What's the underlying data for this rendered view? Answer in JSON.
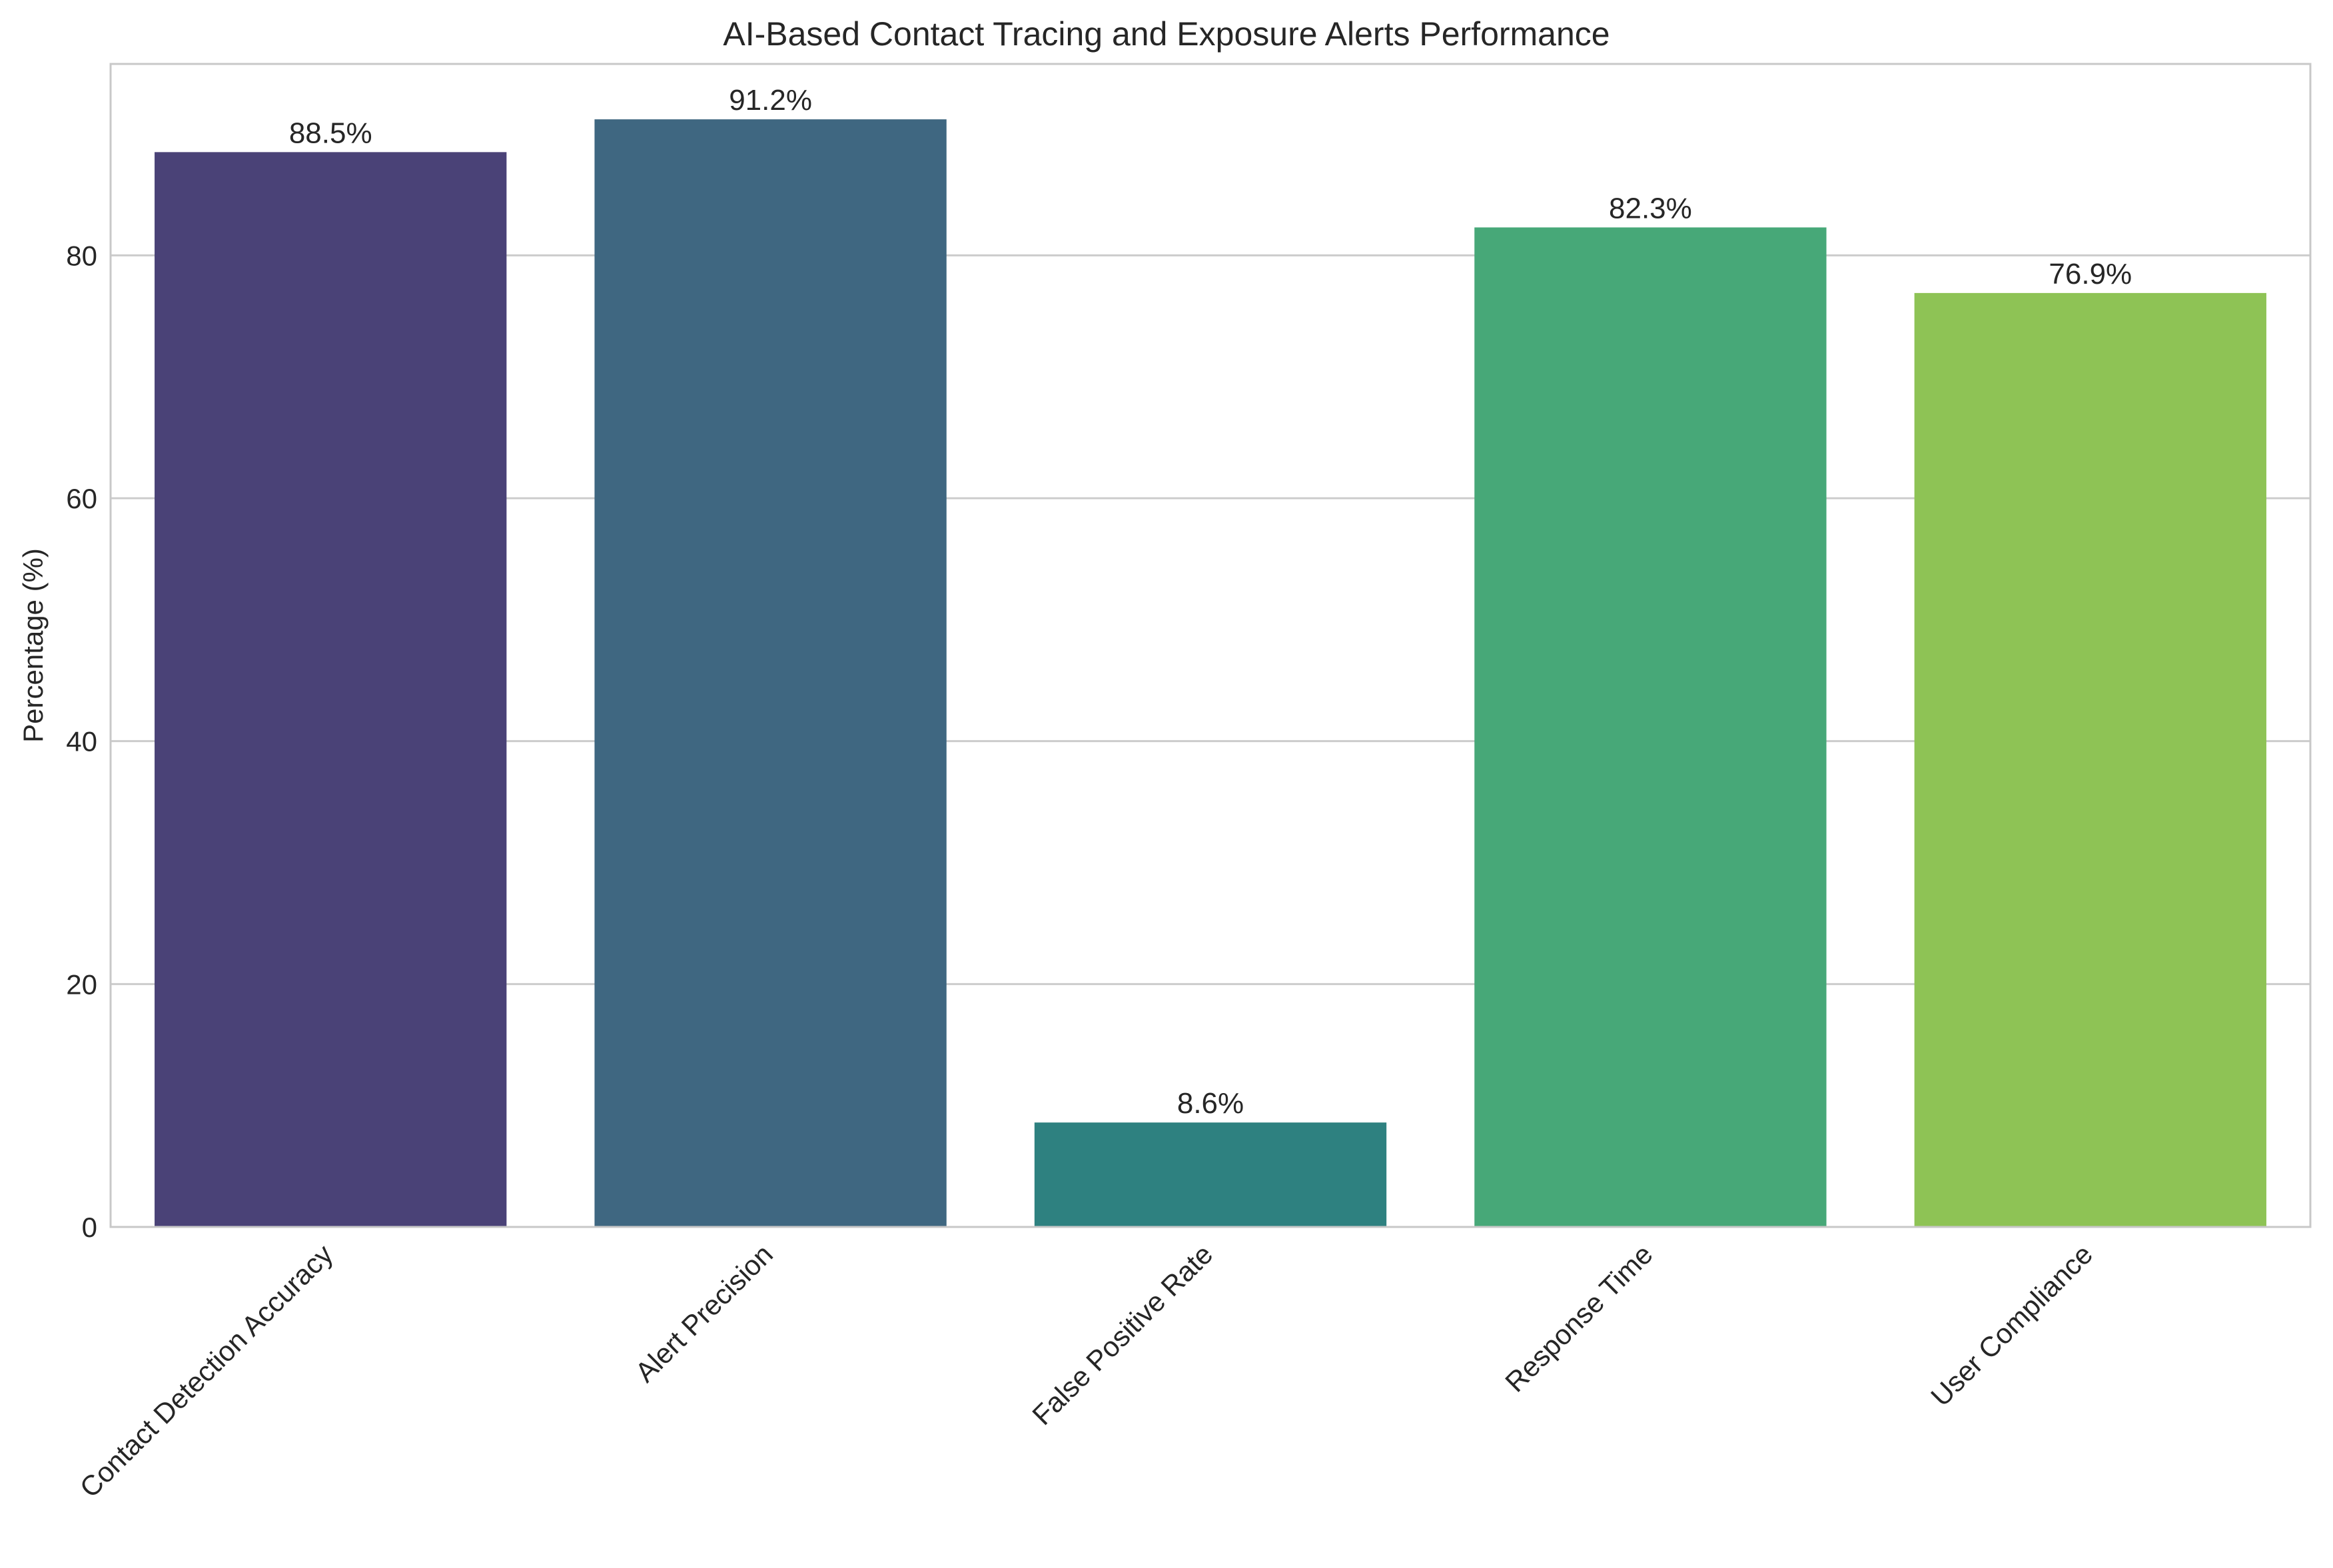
{
  "chart_data": {
    "type": "bar",
    "title": "AI-Based Contact Tracing and Exposure Alerts Performance",
    "xlabel": "",
    "ylabel": "Percentage (%)",
    "categories": [
      "Contact Detection Accuracy",
      "Alert Precision",
      "False Positive Rate",
      "Response Time",
      "User Compliance"
    ],
    "values": [
      88.5,
      91.2,
      8.6,
      82.3,
      76.9
    ],
    "data_labels": [
      "88.5%",
      "91.2%",
      "8.6%",
      "82.3%",
      "76.9%"
    ],
    "colors": [
      "#4a4277",
      "#3f6781",
      "#2e8180",
      "#47a878",
      "#8ec355"
    ],
    "ylim": [
      0,
      95.76
    ],
    "yticks": [
      0,
      20,
      40,
      60,
      80
    ],
    "grid": "horizontal",
    "legend": "none"
  }
}
